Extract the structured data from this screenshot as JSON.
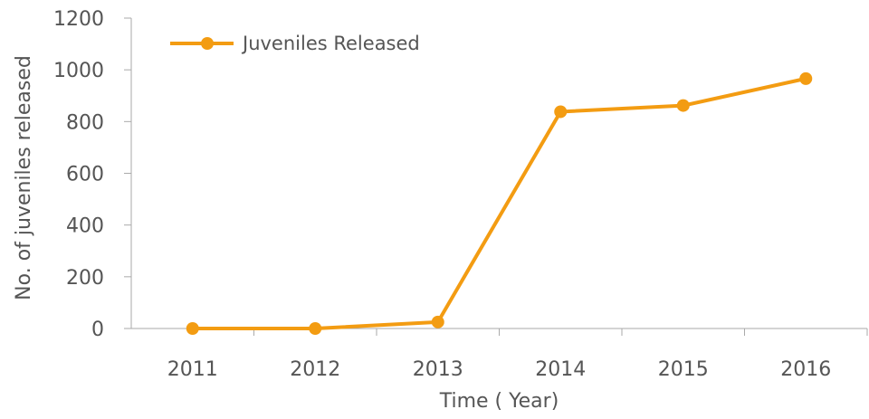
{
  "chart_data": {
    "type": "line",
    "title": "",
    "xlabel": "Time ( Year)",
    "ylabel": "No. of juveniles released",
    "categories": [
      "2011",
      "2012",
      "2013",
      "2014",
      "2015",
      "2016"
    ],
    "series": [
      {
        "name": "Juveniles Released",
        "values": [
          0,
          0,
          25,
          838,
          862,
          966
        ],
        "color": "#F39C12"
      }
    ],
    "ylim": [
      0,
      1200
    ],
    "yticks": [
      "0",
      "200",
      "400",
      "600",
      "800",
      "1000",
      "1200"
    ],
    "grid": false,
    "legend_position": "top-left",
    "axis_color": "#aaaaaa"
  }
}
